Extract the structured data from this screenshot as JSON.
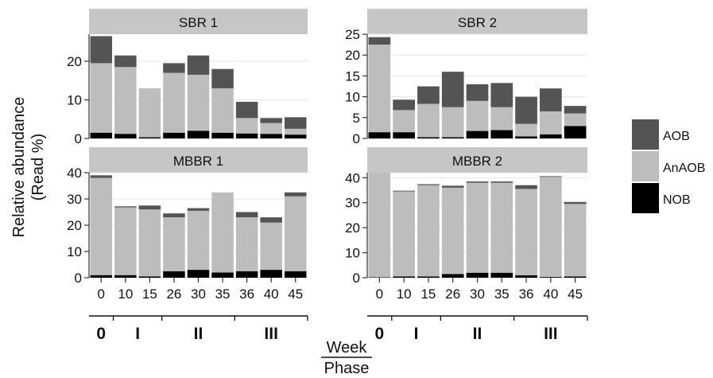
{
  "figure": {
    "y_axis_label_line1": "Relative abundance",
    "y_axis_label_line2": "(Read %)",
    "x_week_label": "Week",
    "x_phase_label": "Phase"
  },
  "legend": {
    "position": "right",
    "items": [
      {
        "label": "AOB",
        "color": "#545454"
      },
      {
        "label": "AnAOB",
        "color": "#bdbdbd"
      },
      {
        "label": "NOB",
        "color": "#000000"
      }
    ]
  },
  "phases": [
    {
      "label": "0",
      "weeks": [
        "0"
      ]
    },
    {
      "label": "I",
      "weeks": [
        "10",
        "15"
      ]
    },
    {
      "label": "II",
      "weeks": [
        "26",
        "30",
        "35"
      ]
    },
    {
      "label": "III",
      "weeks": [
        "36",
        "40",
        "45"
      ]
    }
  ],
  "chart_data": [
    {
      "type": "bar",
      "stacked": true,
      "title": "SBR 1",
      "categories": [
        "0",
        "10",
        "15",
        "26",
        "30",
        "35",
        "36",
        "40",
        "45"
      ],
      "ylim": [
        0,
        27
      ],
      "yticks": [
        0,
        10,
        20
      ],
      "grid": true,
      "series": [
        {
          "name": "NOB",
          "values": [
            1.5,
            1.2,
            0.3,
            1.5,
            2.0,
            1.5,
            1.3,
            1.2,
            1.0
          ]
        },
        {
          "name": "AnAOB",
          "values": [
            18.0,
            17.3,
            12.7,
            15.5,
            14.5,
            11.5,
            4.0,
            2.8,
            1.5
          ]
        },
        {
          "name": "AOB",
          "values": [
            7.0,
            3.0,
            0.0,
            2.5,
            5.0,
            5.0,
            4.2,
            1.3,
            3.0
          ]
        }
      ]
    },
    {
      "type": "bar",
      "stacked": true,
      "title": "SBR 2",
      "categories": [
        "0",
        "10",
        "15",
        "26",
        "30",
        "35",
        "36",
        "40",
        "45"
      ],
      "ylim": [
        0,
        25
      ],
      "yticks": [
        0,
        5,
        10,
        15,
        20,
        25
      ],
      "grid": true,
      "series": [
        {
          "name": "NOB",
          "values": [
            1.5,
            1.5,
            0.3,
            0.3,
            1.8,
            2.0,
            0.5,
            1.0,
            3.0
          ]
        },
        {
          "name": "AnAOB",
          "values": [
            21.0,
            5.3,
            8.0,
            7.2,
            7.2,
            5.5,
            3.0,
            5.5,
            3.0
          ]
        },
        {
          "name": "AOB",
          "values": [
            1.8,
            2.5,
            4.2,
            8.5,
            4.0,
            5.8,
            6.5,
            5.5,
            1.8
          ]
        }
      ]
    },
    {
      "type": "bar",
      "stacked": true,
      "title": "MBBR 1",
      "categories": [
        "0",
        "10",
        "15",
        "26",
        "30",
        "35",
        "36",
        "40",
        "45"
      ],
      "ylim": [
        0,
        40
      ],
      "yticks": [
        0,
        10,
        20,
        30,
        40
      ],
      "grid": true,
      "series": [
        {
          "name": "NOB",
          "values": [
            1.0,
            1.0,
            0.5,
            2.5,
            3.0,
            2.0,
            2.5,
            3.0,
            2.5
          ]
        },
        {
          "name": "AnAOB",
          "values": [
            37.0,
            25.8,
            25.5,
            20.5,
            22.5,
            30.5,
            20.5,
            18.0,
            28.5
          ]
        },
        {
          "name": "AOB",
          "values": [
            1.0,
            0.4,
            1.5,
            1.5,
            1.0,
            0.0,
            2.0,
            2.0,
            1.5
          ]
        }
      ]
    },
    {
      "type": "bar",
      "stacked": true,
      "title": "MBBR 2",
      "categories": [
        "0",
        "10",
        "15",
        "26",
        "30",
        "35",
        "36",
        "40",
        "45"
      ],
      "ylim": [
        0,
        42
      ],
      "yticks": [
        0,
        10,
        20,
        30,
        40
      ],
      "grid": true,
      "series": [
        {
          "name": "NOB",
          "values": [
            0.2,
            0.5,
            0.5,
            1.5,
            2.0,
            2.0,
            1.0,
            0.3,
            0.5
          ]
        },
        {
          "name": "AnAOB",
          "values": [
            41.8,
            34.0,
            36.5,
            34.5,
            36.0,
            36.0,
            34.5,
            40.0,
            29.0
          ]
        },
        {
          "name": "AOB",
          "values": [
            0.0,
            0.3,
            0.4,
            0.8,
            0.5,
            0.5,
            1.5,
            0.3,
            0.8
          ]
        }
      ]
    }
  ]
}
